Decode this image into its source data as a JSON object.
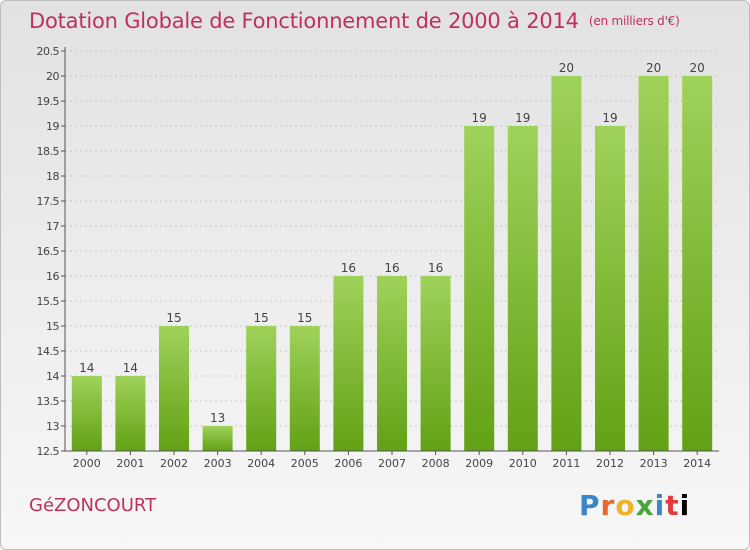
{
  "title": "Dotation Globale de Fonctionnement de 2000 à 2014",
  "unit": "(en milliers d'€)",
  "commune": "GéZONCOURT",
  "brand": "Proxiti",
  "colors": {
    "bar": "#7cbd2a",
    "bar_top": "#a0d45a",
    "title": "#c0305a",
    "grid": "#c8c8c8"
  },
  "chart_data": {
    "type": "bar",
    "categories": [
      "2000",
      "2001",
      "2002",
      "2003",
      "2004",
      "2005",
      "2006",
      "2007",
      "2008",
      "2009",
      "2010",
      "2011",
      "2012",
      "2013",
      "2014"
    ],
    "values": [
      14,
      14,
      15,
      13,
      15,
      15,
      16,
      16,
      16,
      19,
      19,
      20,
      19,
      20,
      20
    ],
    "labels": [
      "14",
      "14",
      "15",
      "13",
      "15",
      "15",
      "16",
      "16",
      "16",
      "19",
      "19",
      "20",
      "19",
      "20",
      "20"
    ],
    "ylim": [
      12.5,
      20.5
    ],
    "yticks": [
      "12.5",
      "13",
      "13.5",
      "14",
      "14.5",
      "15",
      "15.5",
      "16",
      "16.5",
      "17",
      "17.5",
      "18",
      "18.5",
      "19",
      "19.5",
      "20",
      "20.5"
    ],
    "grid": true
  }
}
